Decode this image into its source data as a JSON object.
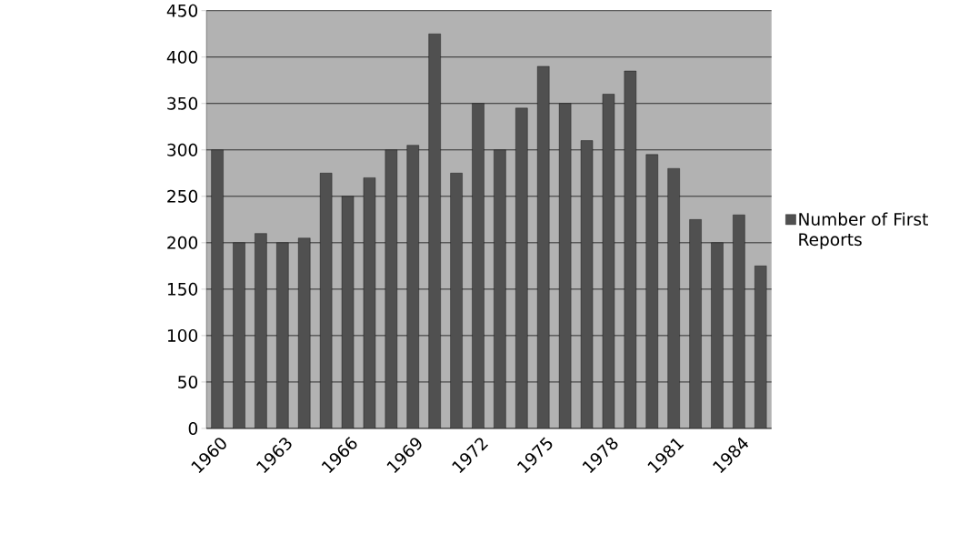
{
  "chart_data": {
    "type": "bar",
    "categories": [
      "1960",
      null,
      null,
      "1963",
      null,
      null,
      "1966",
      null,
      null,
      "1969",
      null,
      null,
      "1972",
      null,
      null,
      "1975",
      null,
      null,
      "1978",
      null,
      null,
      "1981",
      null,
      null,
      "1984",
      null
    ],
    "series": [
      {
        "name": "Number of First Reports",
        "color": "#505050",
        "values": [
          300,
          200,
          210,
          200,
          205,
          275,
          250,
          270,
          300,
          305,
          425,
          275,
          350,
          300,
          345,
          390,
          350,
          310,
          360,
          385,
          295,
          280,
          225,
          200,
          230,
          175
        ]
      }
    ],
    "ylim": [
      0,
      450
    ],
    "yticks": [
      0,
      50,
      100,
      150,
      200,
      250,
      300,
      350,
      400,
      450
    ],
    "grid": "y",
    "legend": "right"
  }
}
